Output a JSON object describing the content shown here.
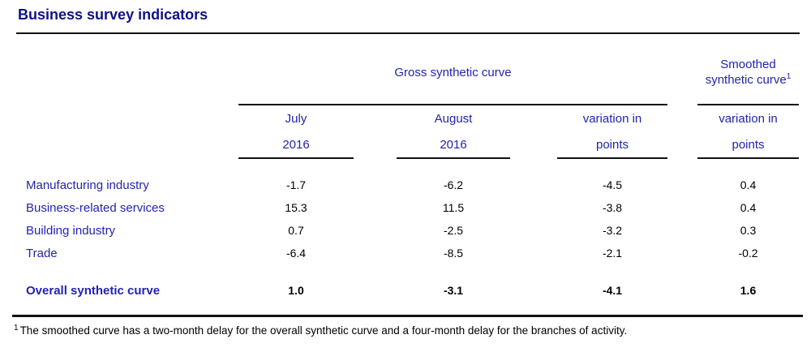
{
  "title": "Business survey indicators",
  "table": {
    "group_headers": {
      "gross": "Gross synthetic curve",
      "smoothed": "Smoothed synthetic curve",
      "smoothed_footnote_ref": "1"
    },
    "column_headers": [
      {
        "line1": "July",
        "line2": "2016"
      },
      {
        "line1": "August",
        "line2": "2016"
      },
      {
        "line1": "variation in",
        "line2": "points"
      },
      {
        "line1": "variation in",
        "line2": "points"
      }
    ],
    "rows": [
      {
        "label": "Manufacturing industry",
        "july_2016": "-1.7",
        "august_2016": "-6.2",
        "variation_points": "-4.5",
        "smoothed_variation_points": "0.4"
      },
      {
        "label": "Business-related services",
        "july_2016": "15.3",
        "august_2016": "11.5",
        "variation_points": "-3.8",
        "smoothed_variation_points": "0.4"
      },
      {
        "label": "Building industry",
        "july_2016": "0.7",
        "august_2016": "-2.5",
        "variation_points": "-3.2",
        "smoothed_variation_points": "0.3"
      },
      {
        "label": "Trade",
        "july_2016": "-6.4",
        "august_2016": "-8.5",
        "variation_points": "-2.1",
        "smoothed_variation_points": "-0.2"
      }
    ],
    "total_row": {
      "label": "Overall synthetic curve",
      "july_2016": "1.0",
      "august_2016": "-3.1",
      "variation_points": "-4.1",
      "smoothed_variation_points": "1.6"
    }
  },
  "footnote": {
    "marker": "1",
    "text": "The smoothed curve has a two-month delay for the overall synthetic curve and a four-month delay for the branches of activity."
  },
  "colors": {
    "title_blue": "#10108E",
    "body_blue": "#2323B2",
    "rule_black": "#111111",
    "value_black": "#000000",
    "background": "#FFFFFF"
  }
}
